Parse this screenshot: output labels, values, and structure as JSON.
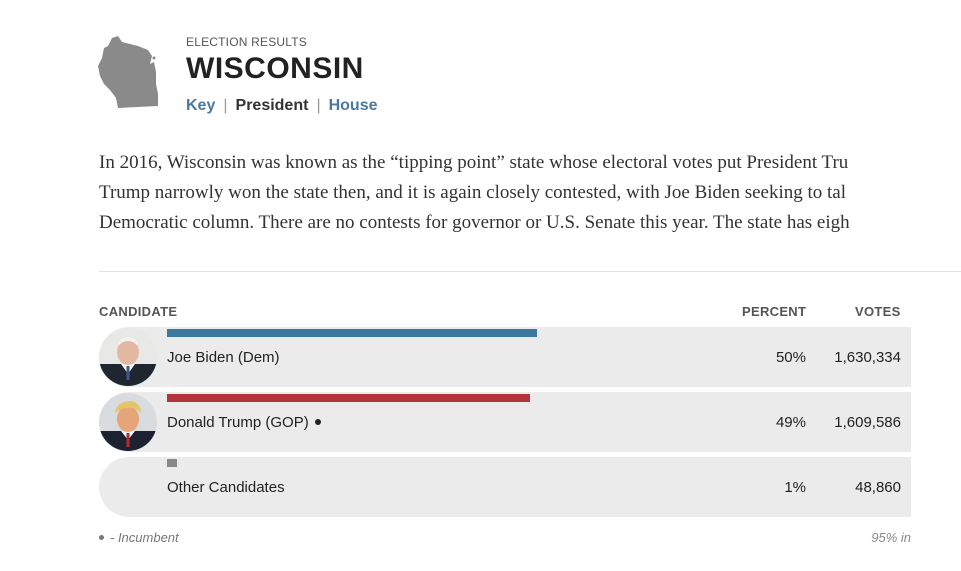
{
  "header": {
    "eyebrow": "ELECTION RESULTS",
    "state": "WISCONSIN",
    "nav": [
      {
        "label": "Key"
      },
      {
        "label": "President"
      },
      {
        "label": "House"
      }
    ]
  },
  "intro": {
    "lines": [
      "In 2016, Wisconsin was known as the “tipping point” state whose electoral votes put President Tru",
      "Trump narrowly won the state then, and it is again closely contested, with Joe Biden seeking to tal",
      "Democratic column. There are no contests for governor or U.S. Senate this year. The state has eigh"
    ]
  },
  "table": {
    "headers": {
      "candidate": "CANDIDATE",
      "percent": "PERCENT",
      "votes": "VOTES"
    },
    "rows": [
      {
        "name": "Joe Biden (Dem)",
        "percent": "50%",
        "votes": "1,630,334",
        "bar_fraction": 0.5,
        "bar_color": "#3a78a0",
        "avatar": "biden-portrait",
        "incumbent": false
      },
      {
        "name": "Donald Trump (GOP)",
        "percent": "49%",
        "votes": "1,609,586",
        "bar_fraction": 0.49,
        "bar_color": "#b3333a",
        "avatar": "trump-portrait",
        "incumbent": true
      },
      {
        "name": "Other Candidates",
        "percent": "1%",
        "votes": "48,860",
        "bar_fraction": 0.01,
        "bar_color": "#888888",
        "avatar": "",
        "incumbent": false
      }
    ]
  },
  "footer": {
    "incumbent_legend": "- Incumbent",
    "reporting": "95% in"
  },
  "colors": {
    "link": "#4a7aa0",
    "dem": "#3a78a0",
    "gop": "#b3333a",
    "other": "#888888",
    "row_bg": "#ebebeb"
  }
}
